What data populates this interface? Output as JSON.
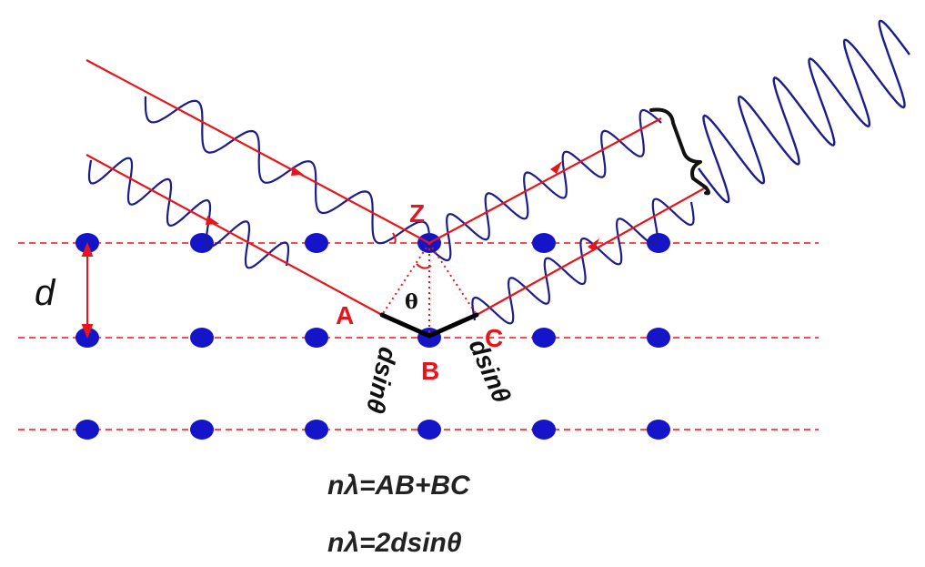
{
  "labels": {
    "spacing": "d",
    "point_z": "Z",
    "point_a": "A",
    "point_b": "B",
    "point_c": "C",
    "angle": "θ",
    "segment_left": "dsinθ",
    "segment_right": "dsinθ"
  },
  "equations": {
    "path_difference": "nλ=AB+BC",
    "bragg_law": "nλ=2dsinθ"
  },
  "colors": {
    "ray": "#e8141b",
    "wave": "#1c1c8c",
    "atom": "#1414c8",
    "lattice_line": "#e8141b",
    "path_segment": "#000000"
  }
}
